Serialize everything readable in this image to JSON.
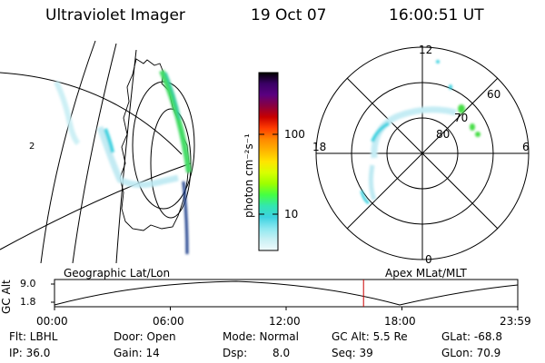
{
  "header": {
    "instrument": "Ultraviolet Imager",
    "date": "19 Oct 07",
    "time": "16:00:51 UT"
  },
  "geo_panel": {
    "lat_label": "2"
  },
  "colorbar": {
    "unit_label": "photon cm⁻²s⁻¹",
    "ticks": [
      "100",
      "10"
    ],
    "colors": [
      "#000000",
      "#3a0066",
      "#5a0080",
      "#8a0040",
      "#c80000",
      "#ff3c00",
      "#ff8800",
      "#ffb400",
      "#ffe400",
      "#d8ff00",
      "#9cff00",
      "#44ff44",
      "#33e6b0",
      "#3cd2e0",
      "#8ce8f0",
      "#c8f0f4",
      "#f0fbfc"
    ]
  },
  "polar_panel": {
    "mlt_labels": {
      "top": "12",
      "left": "18",
      "right": "6",
      "bottom": "0"
    },
    "lat_labels": [
      "60",
      "70",
      "80"
    ]
  },
  "timeline": {
    "left_title": "Geographic Lat/Lon",
    "right_title": "Apex MLat/MLT",
    "axis_label": "GC Alt",
    "y_ticks": [
      "9.0",
      "1.8"
    ],
    "x_ticks": [
      "00:00",
      "06:00",
      "12:00",
      "18:00",
      "23:59"
    ],
    "current_time_hours": 16.01,
    "marker_color": "#cc0000"
  },
  "info": {
    "flt": "Flt: LBHL",
    "door": "Door: Open",
    "mode": "Mode: Normal",
    "gc_alt": "GC Alt: 5.5 Re",
    "glat": "GLat: -68.8",
    "ip": "IP: 36.0",
    "gain": "Gain: 14",
    "dsp_label": "Dsp:",
    "dsp_value": "8.0",
    "seq": "Seq: 39",
    "glon": "GLon: 70.9"
  }
}
